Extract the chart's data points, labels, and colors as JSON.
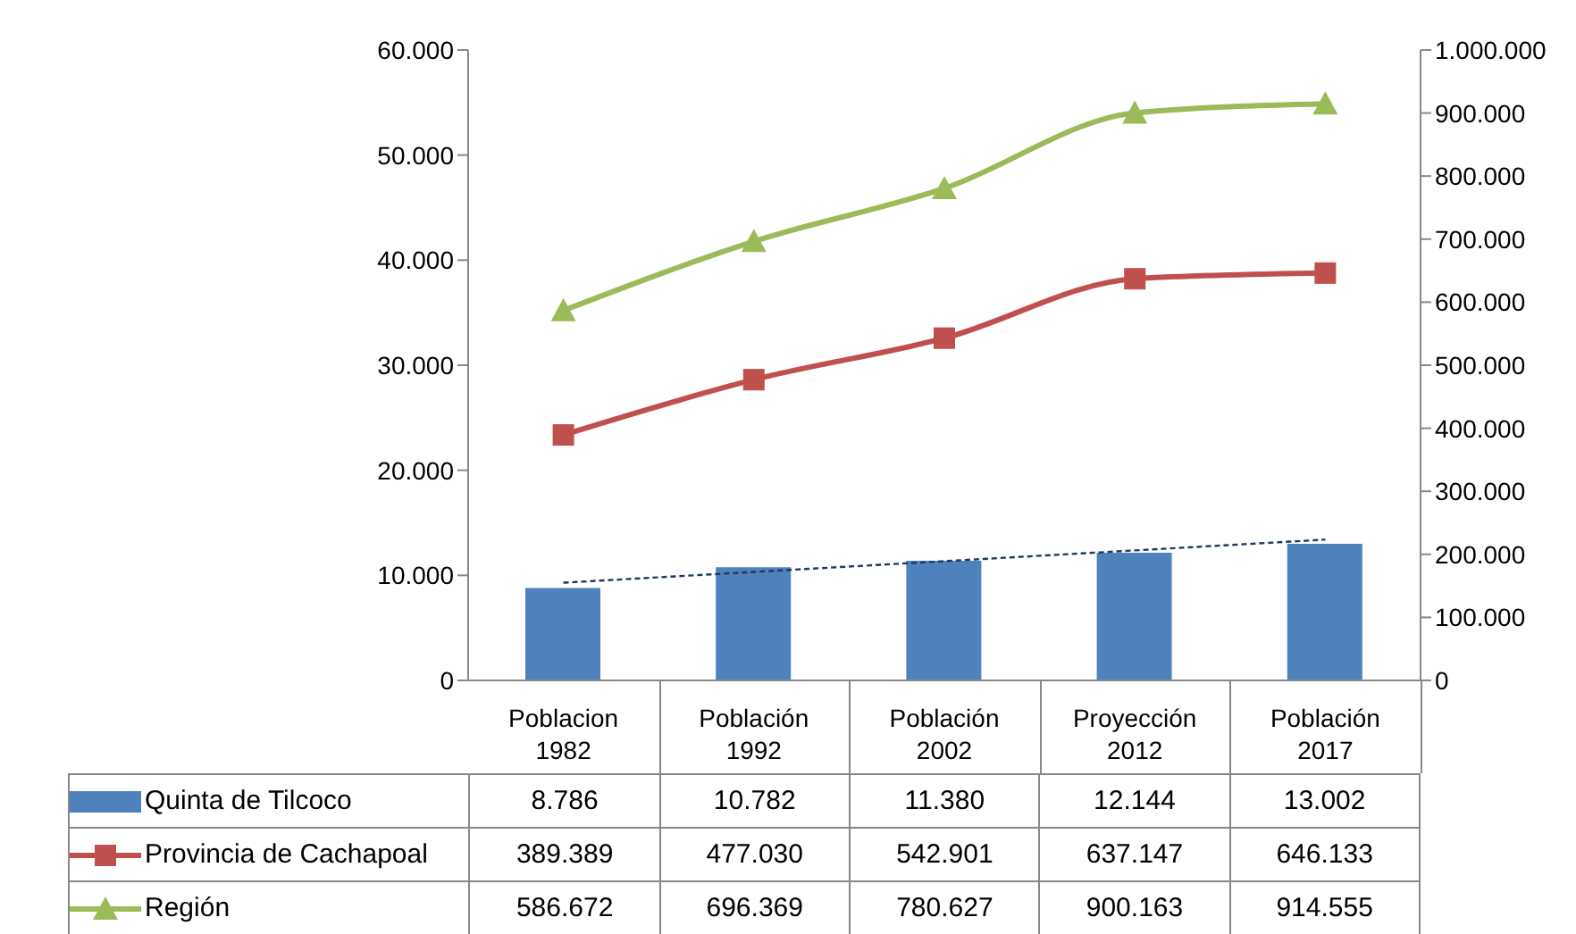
{
  "chart_data": {
    "type": "bar",
    "categories": [
      "Poblacion 1982",
      "Población 1992",
      "Población 2002",
      "Proyección 2012",
      "Población 2017"
    ],
    "series": [
      {
        "name": "Quinta de Tilcoco",
        "color": "#4f81bd",
        "values": [
          8786,
          10782,
          11380,
          12144,
          13002
        ],
        "value_labels": [
          "8.786",
          "10.782",
          "11.380",
          "12.144",
          "13.002"
        ]
      },
      {
        "name": "Provincia de Cachapoal",
        "type": "line",
        "axis": "y2",
        "color": "#c0504d",
        "marker": "square",
        "values": [
          389389,
          477030,
          542901,
          637147,
          646133
        ],
        "value_labels": [
          "389.389",
          "477.030",
          "542.901",
          "637.147",
          "646.133"
        ]
      },
      {
        "name": "Región",
        "type": "line",
        "axis": "y2",
        "color": "#9bbb59",
        "marker": "triangle",
        "values": [
          586672,
          696369,
          780627,
          900163,
          914555
        ],
        "value_labels": [
          "586.672",
          "696.369",
          "780.627",
          "900.163",
          "914.555"
        ]
      },
      {
        "type": "line",
        "x": [
          "Poblacion 1982",
          "Población 2017"
        ],
        "color": "#1f3864",
        "line_style": "dashed",
        "marker": "none",
        "values": [
          9300,
          13400
        ]
      }
    ],
    "ylim": [
      0,
      60000
    ],
    "yticks": [
      0,
      {
        "value": 10000,
        "label": "10.000"
      },
      {
        "value": 20000,
        "label": "20.000"
      },
      {
        "value": 30000,
        "label": "30.000"
      },
      {
        "value": 40000,
        "label": "40.000"
      },
      {
        "value": 50000,
        "label": "50.000"
      },
      {
        "value": 60000,
        "label": "60.000"
      }
    ],
    "y2lim": [
      0,
      1000000
    ],
    "y2ticks": [
      0,
      {
        "value": 100000,
        "label": "100.000"
      },
      {
        "value": 200000,
        "label": "200.000"
      },
      {
        "value": 300000,
        "label": "300.000"
      },
      {
        "value": 400000,
        "label": "400.000"
      },
      {
        "value": 500000,
        "label": "500.000"
      },
      {
        "value": 600000,
        "label": "600.000"
      },
      {
        "value": 700000,
        "label": "700.000"
      },
      {
        "value": 800000,
        "label": "800.000"
      },
      {
        "value": 900000,
        "label": "900.000"
      },
      {
        "value": 1000000,
        "label": "1.000.000"
      }
    ],
    "grid": false,
    "legend": "bottom"
  }
}
